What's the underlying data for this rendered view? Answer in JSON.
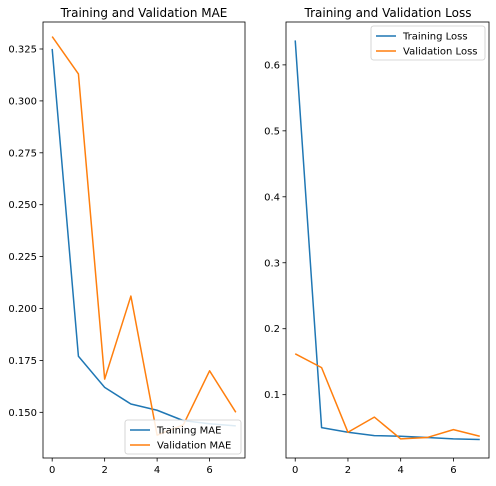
{
  "chart_data": [
    {
      "type": "line",
      "title": "Training and Validation MAE",
      "xlabel": "",
      "ylabel": "",
      "xlim": [
        -0.35,
        7.35
      ],
      "ylim": [
        0.128,
        0.338
      ],
      "xticks": [
        0,
        2,
        4,
        6
      ],
      "yticks": [
        0.15,
        0.175,
        0.2,
        0.225,
        0.25,
        0.275,
        0.3,
        0.325
      ],
      "xtick_labels": [
        "0",
        "2",
        "4",
        "6"
      ],
      "ytick_labels": [
        "0.150",
        "0.175",
        "0.200",
        "0.225",
        "0.250",
        "0.275",
        "0.300",
        "0.325"
      ],
      "legend_position": "lower-right",
      "x": [
        0,
        1,
        2,
        3,
        4,
        5,
        6,
        7
      ],
      "series": [
        {
          "name": "Training MAE",
          "color": "#1f77b4",
          "values": [
            0.325,
            0.177,
            0.162,
            0.154,
            0.151,
            0.146,
            0.1445,
            0.1435
          ]
        },
        {
          "name": "Validation MAE",
          "color": "#ff7f0e",
          "values": [
            0.331,
            0.313,
            0.166,
            0.206,
            0.139,
            0.144,
            0.17,
            0.15
          ]
        }
      ]
    },
    {
      "type": "line",
      "title": "Training and Validation Loss",
      "xlabel": "",
      "ylabel": "",
      "xlim": [
        -0.35,
        7.35
      ],
      "ylim": [
        0.004,
        0.665
      ],
      "xticks": [
        0,
        2,
        4,
        6
      ],
      "yticks": [
        0.1,
        0.2,
        0.3,
        0.4,
        0.5,
        0.6
      ],
      "xtick_labels": [
        "0",
        "2",
        "4",
        "6"
      ],
      "ytick_labels": [
        "0.1",
        "0.2",
        "0.3",
        "0.4",
        "0.5",
        "0.6"
      ],
      "legend_position": "top-right",
      "x": [
        0,
        1,
        2,
        3,
        4,
        5,
        6,
        7
      ],
      "series": [
        {
          "name": "Training Loss",
          "color": "#1f77b4",
          "values": [
            0.637,
            0.05,
            0.043,
            0.038,
            0.037,
            0.035,
            0.033,
            0.032
          ]
        },
        {
          "name": "Validation Loss",
          "color": "#ff7f0e",
          "values": [
            0.162,
            0.141,
            0.043,
            0.066,
            0.033,
            0.035,
            0.047,
            0.037
          ]
        }
      ]
    }
  ]
}
